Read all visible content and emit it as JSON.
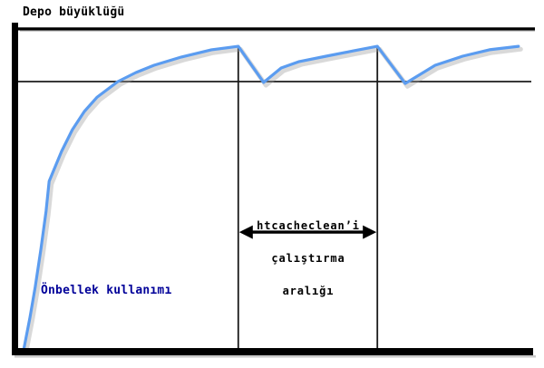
{
  "labels": {
    "title": "Depo büyüklüğü",
    "curve_label": "Önbellek kullanımı",
    "interval_lines": [
      "htcacheclean’i",
      "çalıştırma",
      "aralığı"
    ]
  },
  "colors": {
    "curve": "#5b9cf0",
    "curve_shadow": "#9a9a9a",
    "curve_label_text": "#000099",
    "axis": "#000000",
    "guide_line": "#1b1b1b",
    "arrow": "#000000",
    "background": "#ffffff"
  },
  "chart_data": {
    "type": "line",
    "title": "Depo büyüklüğü",
    "xlabel": "",
    "ylabel": "",
    "grid": false,
    "legend": "none",
    "x_range": [
      0,
      100
    ],
    "y_range": [
      0,
      125
    ],
    "series": [
      {
        "name": "Önbellek kullanımı",
        "points": [
          [
            1.1,
            0
          ],
          [
            2.3,
            11.9
          ],
          [
            3.3,
            23.1
          ],
          [
            4.4,
            37.3
          ],
          [
            5.4,
            51.5
          ],
          [
            6.0,
            62.7
          ],
          [
            6.5,
            65.1
          ],
          [
            8.4,
            73.9
          ],
          [
            10.5,
            82.0
          ],
          [
            12.8,
            88.8
          ],
          [
            15.3,
            94.2
          ],
          [
            19.3,
            100.0
          ],
          [
            22.8,
            103.4
          ],
          [
            26.3,
            106.1
          ],
          [
            31.6,
            109.2
          ],
          [
            37.4,
            111.9
          ],
          [
            42.6,
            113.2
          ],
          [
            47.5,
            99.7
          ],
          [
            50.9,
            105.1
          ],
          [
            54.4,
            107.5
          ],
          [
            59.6,
            109.5
          ],
          [
            64.9,
            111.5
          ],
          [
            69.5,
            113.2
          ],
          [
            74.9,
            99.3
          ],
          [
            80.7,
            106.1
          ],
          [
            86.0,
            109.5
          ],
          [
            91.2,
            111.9
          ],
          [
            96.8,
            113.2
          ]
        ]
      }
    ],
    "reference_lines": {
      "storage_limit_y": 100,
      "chart_top_y": 119.7,
      "cleanup_run_x": [
        42.6,
        69.5
      ],
      "cleanup_line_top_y": 113.2
    },
    "annotations": [
      {
        "text": "htcacheclean’i çalıştırma aralığı",
        "type": "double-headed-arrow",
        "between_x": [
          42.6,
          69.5
        ],
        "arrow_y": 43.7
      }
    ]
  }
}
